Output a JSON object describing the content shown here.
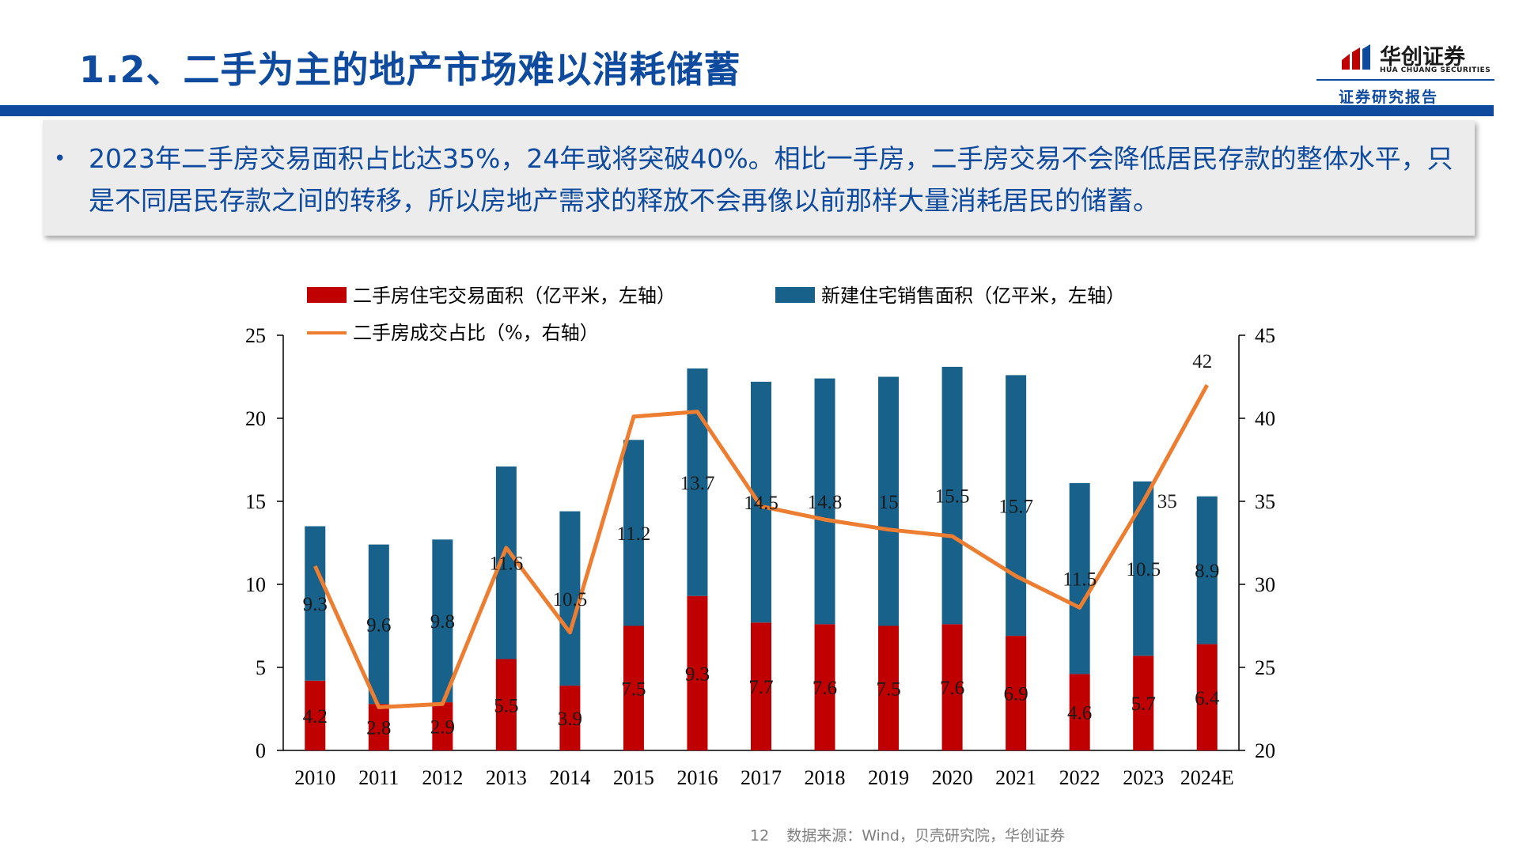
{
  "header": {
    "title": "1.2、二手为主的地产市场难以消耗储蓄"
  },
  "logo": {
    "name_cn": "华创证券",
    "name_en": "HUA CHUANG SECURITIES",
    "subtitle": "证券研究报告",
    "color": "#c00000"
  },
  "summary": {
    "bullet": "•",
    "text": "2023年二手房交易面积占比达35%，24年或将突破40%。相比一手房，二手房交易不会降低居民存款的整体水平，只是不同居民存款之间的转移，所以房地产需求的释放不会再像以前那样大量消耗居民的储蓄。"
  },
  "footer": {
    "page": "12",
    "source": "数据来源：Wind，贝壳研究院，华创证券"
  },
  "colors": {
    "title": "#0e4a9e",
    "secondhand": "#c00000",
    "newbuild": "#17618a",
    "share_line": "#ed7d31"
  },
  "chart_data": {
    "type": "bar",
    "stacked": true,
    "categories": [
      "2010",
      "2011",
      "2012",
      "2013",
      "2014",
      "2015",
      "2016",
      "2017",
      "2018",
      "2019",
      "2020",
      "2021",
      "2022",
      "2023",
      "2024E"
    ],
    "series": [
      {
        "name": "二手房住宅交易面积（亿平米，左轴）",
        "axis": "left",
        "type": "bar",
        "values": [
          4.2,
          2.8,
          2.9,
          5.5,
          3.9,
          7.5,
          9.3,
          7.7,
          7.6,
          7.5,
          7.6,
          6.9,
          4.6,
          5.7,
          6.4
        ]
      },
      {
        "name": "新建住宅销售面积（亿平米，左轴）",
        "axis": "left",
        "type": "bar",
        "values": [
          9.3,
          9.6,
          9.8,
          11.6,
          10.5,
          11.2,
          13.7,
          14.5,
          14.8,
          15,
          15.5,
          15.7,
          11.5,
          10.5,
          8.9
        ]
      },
      {
        "name": "二手房成交占比（%，右轴）",
        "axis": "right",
        "type": "line",
        "values": [
          31.1,
          22.6,
          22.8,
          32.2,
          27.1,
          40.1,
          40.4,
          34.7,
          33.9,
          33.3,
          32.9,
          30.5,
          28.6,
          35,
          42
        ]
      }
    ],
    "line_labels": {
      "2023": "35",
      "2024E": "42"
    },
    "y_left": {
      "ylim": [
        0,
        25
      ],
      "ticks": [
        0,
        5,
        10,
        15,
        20,
        25
      ]
    },
    "y_right": {
      "ylim": [
        20,
        45
      ],
      "ticks": [
        20,
        25,
        30,
        35,
        40,
        45
      ]
    },
    "legend": [
      "二手房住宅交易面积（亿平米，左轴）",
      "新建住宅销售面积（亿平米，左轴）",
      "二手房成交占比（%，右轴）"
    ]
  }
}
